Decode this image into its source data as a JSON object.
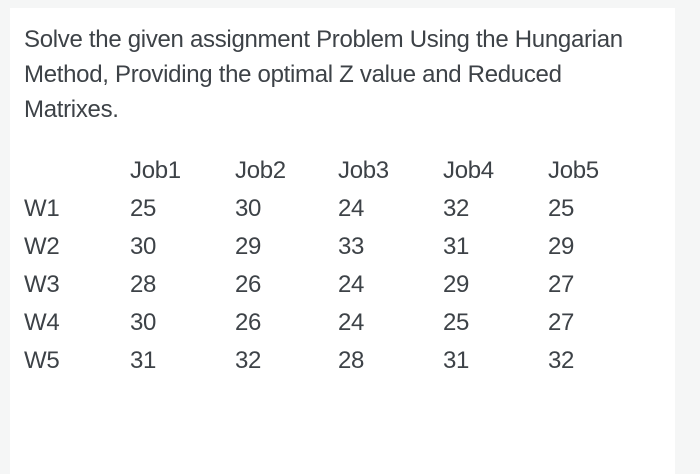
{
  "page": {
    "background_color": "#f5f6f6",
    "card_color": "#ffffff",
    "text_color": "#3d4247"
  },
  "problem": {
    "full_text": "Solve the given assignment Problem Using the Hungarian Method, Providing the optimal Z value and Reduced Matrixes.",
    "title_lines": [
      "Solve the given assignment Problem Using the Hungarian",
      "Method, Providing the optimal Z value and Reduced",
      "Matrixes."
    ]
  },
  "table": {
    "corner_label": "",
    "columns": [
      "Job1",
      "Job2",
      "Job3",
      "Job4",
      "Job5"
    ],
    "rows": [
      {
        "label": "W1",
        "values": [
          25,
          30,
          24,
          32,
          25
        ]
      },
      {
        "label": "W2",
        "values": [
          30,
          29,
          33,
          31,
          29
        ]
      },
      {
        "label": "W3",
        "values": [
          28,
          26,
          24,
          29,
          27
        ]
      },
      {
        "label": "W4",
        "values": [
          30,
          26,
          24,
          25,
          27
        ]
      },
      {
        "label": "W5",
        "values": [
          31,
          32,
          28,
          31,
          32
        ]
      }
    ]
  }
}
